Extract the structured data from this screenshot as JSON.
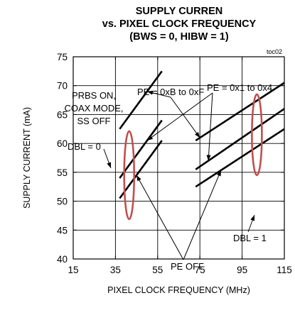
{
  "chart_data": {
    "type": "line",
    "title": [
      "SUPPLY CURREN",
      "vs. PIXEL CLOCK FREQUENCY",
      "(BWS = 0, HIBW = 1)"
    ],
    "figure_id": "toc02",
    "xlabel": "PIXEL CLOCK FREQUENCY (MHz)",
    "ylabel": "SUPPLY CURRENT (mA)",
    "xlim": [
      15,
      115
    ],
    "ylim": [
      40,
      75
    ],
    "xticks": [
      "15",
      "35",
      "55",
      "75",
      "95",
      "115"
    ],
    "yticks": [
      "40",
      "45",
      "50",
      "55",
      "60",
      "65",
      "70",
      "75"
    ],
    "grid": true,
    "series": [
      {
        "group": "DBL = 0",
        "setting": "PE = 0xB to 0xF",
        "x": [
          37,
          57
        ],
        "y": [
          62.5,
          72.5
        ]
      },
      {
        "group": "DBL = 0",
        "setting": "PE = 0x1 to 0x4",
        "x": [
          37,
          57
        ],
        "y": [
          54.0,
          64.0
        ]
      },
      {
        "group": "DBL = 0",
        "setting": "PE OFF",
        "x": [
          37,
          57
        ],
        "y": [
          50.5,
          60.5
        ]
      },
      {
        "group": "DBL = 1",
        "setting": "PE = 0xB to 0xF",
        "x": [
          73,
          115
        ],
        "y": [
          60.5,
          70.5
        ]
      },
      {
        "group": "DBL = 1",
        "setting": "PE = 0x1 to 0x4",
        "x": [
          73,
          115
        ],
        "y": [
          55.5,
          66.0
        ]
      },
      {
        "group": "DBL = 1",
        "setting": "PE OFF",
        "x": [
          73,
          115
        ],
        "y": [
          52.5,
          62.5
        ]
      }
    ],
    "annotations": [
      {
        "id": "conditions",
        "lines": [
          "PRBS ON,",
          "COAX MODE,",
          "SS OFF"
        ]
      },
      {
        "id": "pe-high",
        "text": "PE = 0xB to 0xF"
      },
      {
        "id": "pe-low",
        "text": "PE = 0x1 to 0x4"
      },
      {
        "id": "dbl0",
        "text": "DBL = 0"
      },
      {
        "id": "dbl1",
        "text": "DBL = 1"
      },
      {
        "id": "pe-off",
        "text": "PE OFF"
      }
    ],
    "colors": {
      "lines": "#000000",
      "highlight": "#c0504d"
    }
  }
}
